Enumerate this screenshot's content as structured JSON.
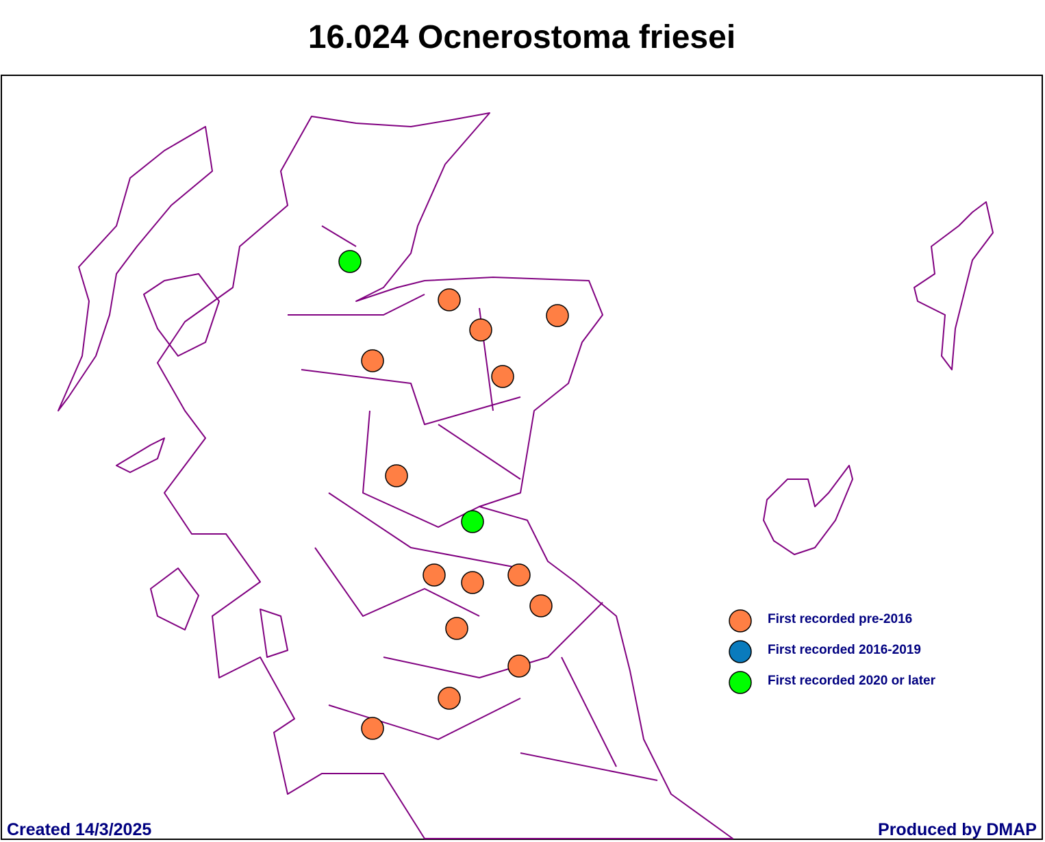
{
  "title": "16.024 Ocnerostoma friesei",
  "legend": [
    {
      "label": "First recorded pre-2016",
      "color": "#ff7f44"
    },
    {
      "label": "First recorded 2016-2019",
      "color": "#0a7bbd"
    },
    {
      "label": "First recorded 2020 or later",
      "color": "#00ff00"
    }
  ],
  "footer": {
    "created": "Created 14/3/2025",
    "producer": "Produced by DMAP"
  }
}
